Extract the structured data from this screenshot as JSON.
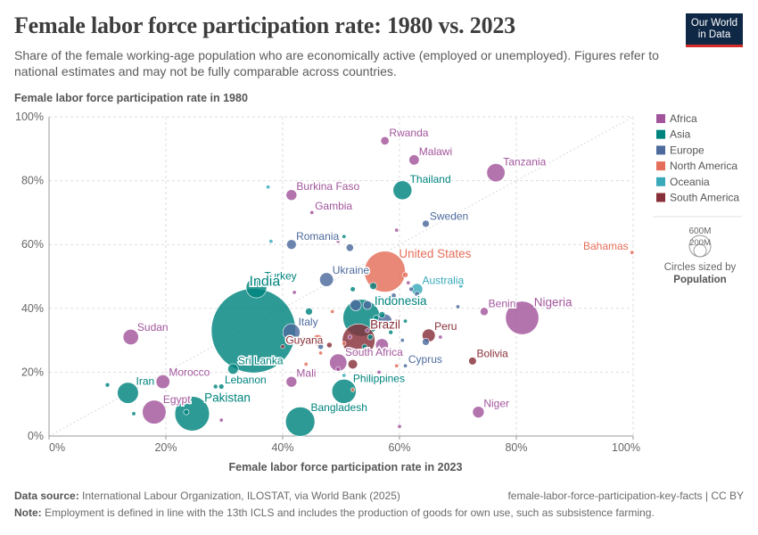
{
  "header": {
    "title": "Female labor force participation rate: 1980 vs. 2023",
    "subtitle": "Share of the female working-age population who are economically active (employed or unemployed). Figures refer to national estimates and may not be fully comparable across countries.",
    "logo_line1": "Our World",
    "logo_line2": "in Data"
  },
  "footer": {
    "source_label": "Data source:",
    "source_text": "International Labour Organization, ILOSTAT, via World Bank (2025)",
    "slug": "female-labor-force-participation-key-facts | CC BY",
    "note_label": "Note:",
    "note_text": "Employment is defined in line with the 13th ICLS and includes the production of goods for own use, such as subsistence farming."
  },
  "size_legend": {
    "large": "600M",
    "small": "200M",
    "caption": "Circles sized by",
    "caption_bold": "Population"
  },
  "chart_data": {
    "type": "scatter",
    "xlabel": "Female labor force participation rate in 2023",
    "ylabel": "Female labor force participation rate in 1980",
    "xlim": [
      0,
      100
    ],
    "ylim": [
      0,
      100
    ],
    "xticks": [
      "0%",
      "20%",
      "40%",
      "60%",
      "80%",
      "100%"
    ],
    "yticks": [
      "0%",
      "20%",
      "40%",
      "60%",
      "80%",
      "100%"
    ],
    "grid": true,
    "diagonal_line": true,
    "legend_position": "right",
    "regions": [
      {
        "name": "Africa",
        "color": "#a2559c"
      },
      {
        "name": "Asia",
        "color": "#00847e"
      },
      {
        "name": "Europe",
        "color": "#4c6a9c"
      },
      {
        "name": "North America",
        "color": "#e56e5a"
      },
      {
        "name": "Oceania",
        "color": "#38aaba"
      },
      {
        "name": "South America",
        "color": "#883039"
      }
    ],
    "points": [
      {
        "label": "Rwanda",
        "x": 57.5,
        "y": 92.5,
        "region": "Africa",
        "pop": 14
      },
      {
        "label": "Malawi",
        "x": 62.5,
        "y": 86.5,
        "region": "Africa",
        "pop": 21
      },
      {
        "label": "Tanzania",
        "x": 76.5,
        "y": 82.5,
        "region": "Africa",
        "pop": 67
      },
      {
        "label": "Thailand",
        "x": 60.5,
        "y": 77,
        "region": "Asia",
        "pop": 71
      },
      {
        "label": "Burkina Faso",
        "x": 41.5,
        "y": 75.5,
        "region": "Africa",
        "pop": 23
      },
      {
        "label": "Gambia",
        "x": 45,
        "y": 70,
        "region": "Africa",
        "pop": 3
      },
      {
        "label": "Sweden",
        "x": 64.5,
        "y": 66.5,
        "region": "Europe",
        "pop": 10
      },
      {
        "label": "Romania",
        "x": 41.5,
        "y": 60,
        "region": "Europe",
        "pop": 19
      },
      {
        "label": "Bahamas",
        "x": 99.8,
        "y": 57.5,
        "region": "North America",
        "pop": 0.4
      },
      {
        "label": "United States",
        "x": 57.5,
        "y": 51.5,
        "region": "North America",
        "pop": 335
      },
      {
        "label": "Ukraine",
        "x": 47.5,
        "y": 49,
        "region": "Europe",
        "pop": 38
      },
      {
        "label": "Australia",
        "x": 63,
        "y": 46,
        "region": "Oceania",
        "pop": 26
      },
      {
        "label": "Turkey",
        "x": 35.5,
        "y": 46.5,
        "region": "Asia",
        "pop": 85
      },
      {
        "label": "India",
        "x": 35,
        "y": 33,
        "region": "Asia",
        "pop": 1430
      },
      {
        "label": "Indonesia",
        "x": 53.5,
        "y": 37,
        "region": "Asia",
        "pop": 277
      },
      {
        "label": "Benin",
        "x": 74.5,
        "y": 39,
        "region": "Africa",
        "pop": 13
      },
      {
        "label": "Nigeria",
        "x": 81,
        "y": 37,
        "region": "Africa",
        "pop": 223
      },
      {
        "label": "Italy",
        "x": 41.5,
        "y": 32.5,
        "region": "Europe",
        "pop": 59
      },
      {
        "label": "Sudan",
        "x": 14,
        "y": 31,
        "region": "Africa",
        "pop": 48
      },
      {
        "label": "Guyana",
        "x": 40,
        "y": 28,
        "region": "South America",
        "pop": 0.8
      },
      {
        "label": "Brazil",
        "x": 53,
        "y": 30,
        "region": "South America",
        "pop": 216
      },
      {
        "label": "Peru",
        "x": 65,
        "y": 31.5,
        "region": "South America",
        "pop": 34
      },
      {
        "label": "South Africa",
        "x": 49.5,
        "y": 23,
        "region": "Africa",
        "pop": 60
      },
      {
        "label": "Cyprus",
        "x": 61,
        "y": 22,
        "region": "Europe",
        "pop": 1.3
      },
      {
        "label": "Bolivia",
        "x": 72.5,
        "y": 23.5,
        "region": "South America",
        "pop": 12
      },
      {
        "label": "Sri Lanka",
        "x": 31.5,
        "y": 21,
        "region": "Asia",
        "pop": 22
      },
      {
        "label": "Iran",
        "x": 13.5,
        "y": 13.5,
        "region": "Asia",
        "pop": 89
      },
      {
        "label": "Morocco",
        "x": 19.5,
        "y": 17,
        "region": "Africa",
        "pop": 38
      },
      {
        "label": "Lebanon",
        "x": 29.5,
        "y": 15.5,
        "region": "Asia",
        "pop": 5.4
      },
      {
        "label": "Mali",
        "x": 41.5,
        "y": 17,
        "region": "Africa",
        "pop": 23
      },
      {
        "label": "Philippines",
        "x": 50.5,
        "y": 14,
        "region": "Asia",
        "pop": 118
      },
      {
        "label": "Egypt",
        "x": 18,
        "y": 7.5,
        "region": "Africa",
        "pop": 113
      },
      {
        "label": "Pakistan",
        "x": 24.5,
        "y": 7,
        "region": "Asia",
        "pop": 240
      },
      {
        "label": "Bangladesh",
        "x": 43,
        "y": 4.5,
        "region": "Asia",
        "pop": 173
      },
      {
        "label": "Niger",
        "x": 73.5,
        "y": 7.5,
        "region": "Africa",
        "pop": 27
      },
      {
        "label": "",
        "x": 10,
        "y": 16,
        "region": "Asia",
        "pop": 4
      },
      {
        "label": "",
        "x": 14.5,
        "y": 7,
        "region": "Asia",
        "pop": 2
      },
      {
        "label": "",
        "x": 29.5,
        "y": 5,
        "region": "Africa",
        "pop": 3
      },
      {
        "label": "",
        "x": 60,
        "y": 3,
        "region": "Africa",
        "pop": 3
      },
      {
        "label": "",
        "x": 23.5,
        "y": 7.5,
        "region": "Asia",
        "pop": 6
      },
      {
        "label": "",
        "x": 28.5,
        "y": 15.5,
        "region": "Asia",
        "pop": 4
      },
      {
        "label": "",
        "x": 37.5,
        "y": 78,
        "region": "Oceania",
        "pop": 2
      },
      {
        "label": "",
        "x": 38,
        "y": 61,
        "region": "Oceania",
        "pop": 2
      },
      {
        "label": "",
        "x": 50.5,
        "y": 62.5,
        "region": "Asia",
        "pop": 3
      },
      {
        "label": "",
        "x": 49.5,
        "y": 61,
        "region": "Africa",
        "pop": 3
      },
      {
        "label": "",
        "x": 51.5,
        "y": 59,
        "region": "Europe",
        "pop": 11
      },
      {
        "label": "",
        "x": 59.5,
        "y": 64.5,
        "region": "Africa",
        "pop": 3
      },
      {
        "label": "",
        "x": 42,
        "y": 45,
        "region": "Africa",
        "pop": 3
      },
      {
        "label": "",
        "x": 44.5,
        "y": 39,
        "region": "Asia",
        "pop": 10
      },
      {
        "label": "",
        "x": 48.5,
        "y": 39,
        "region": "North America",
        "pop": 3
      },
      {
        "label": "",
        "x": 52,
        "y": 46,
        "region": "Asia",
        "pop": 5
      },
      {
        "label": "",
        "x": 52.5,
        "y": 41,
        "region": "Europe",
        "pop": 25
      },
      {
        "label": "",
        "x": 54.5,
        "y": 41,
        "region": "Europe",
        "pop": 15
      },
      {
        "label": "",
        "x": 55.5,
        "y": 47,
        "region": "Asia",
        "pop": 10
      },
      {
        "label": "",
        "x": 56.5,
        "y": 43,
        "region": "Oceania",
        "pop": 8
      },
      {
        "label": "",
        "x": 56,
        "y": 37,
        "region": "Asia",
        "pop": 6
      },
      {
        "label": "",
        "x": 57,
        "y": 38,
        "region": "Asia",
        "pop": 8
      },
      {
        "label": "",
        "x": 57.5,
        "y": 36,
        "region": "Europe",
        "pop": 40
      },
      {
        "label": "",
        "x": 58.5,
        "y": 41.5,
        "region": "Asia",
        "pop": 6
      },
      {
        "label": "",
        "x": 59,
        "y": 44,
        "region": "Europe",
        "pop": 5
      },
      {
        "label": "",
        "x": 61,
        "y": 50.5,
        "region": "North America",
        "pop": 6
      },
      {
        "label": "",
        "x": 61.5,
        "y": 48,
        "region": "Africa",
        "pop": 3
      },
      {
        "label": "",
        "x": 62,
        "y": 46,
        "region": "Europe",
        "pop": 4
      },
      {
        "label": "",
        "x": 63,
        "y": 44.5,
        "region": "Europe",
        "pop": 5
      },
      {
        "label": "",
        "x": 61.5,
        "y": 42,
        "region": "Asia",
        "pop": 6
      },
      {
        "label": "",
        "x": 61,
        "y": 36,
        "region": "Asia",
        "pop": 3
      },
      {
        "label": "",
        "x": 60.5,
        "y": 30,
        "region": "Europe",
        "pop": 3
      },
      {
        "label": "",
        "x": 64.5,
        "y": 29.5,
        "region": "Europe",
        "pop": 10
      },
      {
        "label": "",
        "x": 67,
        "y": 31,
        "region": "Africa",
        "pop": 3
      },
      {
        "label": "",
        "x": 70,
        "y": 40.5,
        "region": "Europe",
        "pop": 3
      },
      {
        "label": "",
        "x": 70.5,
        "y": 47,
        "region": "Oceania",
        "pop": 2
      },
      {
        "label": "",
        "x": 43.5,
        "y": 30,
        "region": "South America",
        "pop": 8
      },
      {
        "label": "",
        "x": 46,
        "y": 30,
        "region": "North America",
        "pop": 25
      },
      {
        "label": "",
        "x": 46.5,
        "y": 28,
        "region": "Europe",
        "pop": 6
      },
      {
        "label": "",
        "x": 48,
        "y": 28.5,
        "region": "South America",
        "pop": 6
      },
      {
        "label": "",
        "x": 50.5,
        "y": 29,
        "region": "North America",
        "pop": 3
      },
      {
        "label": "",
        "x": 51.5,
        "y": 31,
        "region": "Africa",
        "pop": 3
      },
      {
        "label": "",
        "x": 52,
        "y": 27,
        "region": "Africa",
        "pop": 3
      },
      {
        "label": "",
        "x": 54,
        "y": 28,
        "region": "Asia",
        "pop": 5
      },
      {
        "label": "",
        "x": 54.5,
        "y": 33,
        "region": "Africa",
        "pop": 3
      },
      {
        "label": "",
        "x": 55,
        "y": 31,
        "region": "Asia",
        "pop": 6
      },
      {
        "label": "",
        "x": 57,
        "y": 28.5,
        "region": "Africa",
        "pop": 33
      },
      {
        "label": "",
        "x": 58.5,
        "y": 32.5,
        "region": "Asia",
        "pop": 4
      },
      {
        "label": "",
        "x": 59.5,
        "y": 22,
        "region": "North America",
        "pop": 3
      },
      {
        "label": "",
        "x": 56.5,
        "y": 20,
        "region": "Africa",
        "pop": 3
      },
      {
        "label": "",
        "x": 52,
        "y": 22.5,
        "region": "South America",
        "pop": 18
      },
      {
        "label": "",
        "x": 49.5,
        "y": 21,
        "region": "Africa",
        "pop": 4
      },
      {
        "label": "",
        "x": 44,
        "y": 22.5,
        "region": "North America",
        "pop": 3
      },
      {
        "label": "",
        "x": 46.5,
        "y": 26,
        "region": "North America",
        "pop": 3
      },
      {
        "label": "",
        "x": 50.5,
        "y": 19,
        "region": "Oceania",
        "pop": 3
      },
      {
        "label": "",
        "x": 52,
        "y": 14.5,
        "region": "North America",
        "pop": 3
      }
    ]
  }
}
